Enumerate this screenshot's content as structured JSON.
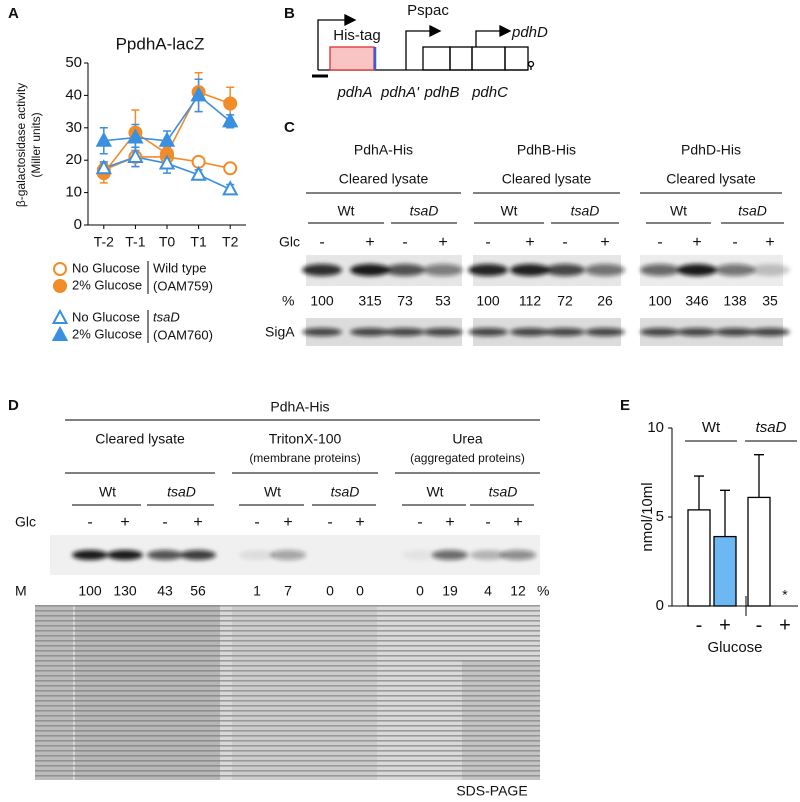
{
  "chart_data": [
    {
      "panel": "A",
      "type": "line",
      "title": "PpdhA-lacZ",
      "ylabel": "β-galactosidase activity",
      "ylabel_unit": "(Miller units)",
      "categories": [
        "T-2",
        "T-1",
        "T0",
        "T1",
        "T2"
      ],
      "ylim": [
        0,
        50
      ],
      "yticks": [
        0,
        10,
        20,
        30,
        40,
        50
      ],
      "grid": false,
      "series": [
        {
          "name": "No Glucose",
          "color": "#f28c28",
          "marker": "circle",
          "filled": false,
          "values": [
            17,
            21,
            21,
            19.5,
            17.5
          ],
          "errors": [
            2,
            3,
            3,
            1.5,
            1.5
          ]
        },
        {
          "name": "2% Glucose",
          "color": "#f28c28",
          "marker": "circle",
          "filled": true,
          "values": [
            16,
            28.5,
            22,
            41,
            37.5
          ],
          "errors": [
            3,
            7,
            4,
            6,
            5
          ]
        },
        {
          "name": "No Glucose",
          "color": "#3b8fe0",
          "marker": "triangle",
          "filled": false,
          "values": [
            17.5,
            21,
            19,
            15.5,
            11
          ],
          "errors": [
            2,
            3,
            3,
            1.5,
            1.5
          ]
        },
        {
          "name": "2% Glucose",
          "color": "#3b8fe0",
          "marker": "triangle",
          "filled": true,
          "values": [
            26,
            27,
            26,
            40,
            32
          ],
          "errors": [
            4,
            4,
            3,
            5,
            2
          ]
        }
      ],
      "legend_groups": [
        {
          "label": "Wild type",
          "strain": "(OAM759)"
        },
        {
          "label": "tsaD",
          "strain": "(OAM760)"
        }
      ]
    },
    {
      "panel": "E",
      "type": "bar",
      "groups": [
        "Wt",
        "tsaD"
      ],
      "categories": [
        "-",
        "+",
        "-",
        "+"
      ],
      "values": [
        5.4,
        3.9,
        6.1,
        0
      ],
      "errors": [
        1.9,
        2.6,
        2.4,
        null
      ],
      "colors": [
        "#ffffff",
        "#6bb8f2",
        "#ffffff",
        "#ffffff"
      ],
      "annotation": "*",
      "ylim": [
        0,
        10
      ],
      "yticks": [
        0,
        5,
        10
      ],
      "ylabel": "nmol/10ml",
      "xlabel": "Glucose"
    }
  ],
  "panel_b": {
    "label": "B",
    "his_tag": "His-tag",
    "pspac": "Pspac",
    "pdhD": "pdhD",
    "genes": [
      "pdhA",
      "pdhA'",
      "pdhB",
      "pdhC"
    ]
  },
  "panel_c": {
    "label": "C",
    "glc_label": "Glc",
    "percent_label": "%",
    "siga_label": "SigA",
    "blots": [
      {
        "header": "PdhA-His",
        "lysate": "Cleared lysate",
        "strains": [
          "Wt",
          "tsaD"
        ],
        "glc": [
          "-",
          "+",
          "-",
          "+"
        ],
        "percent": [
          100,
          315,
          73,
          53
        ]
      },
      {
        "header": "PdhB-His",
        "lysate": "Cleared lysate",
        "strains": [
          "Wt",
          "tsaD"
        ],
        "glc": [
          "-",
          "+",
          "-",
          "+"
        ],
        "percent": [
          100,
          112,
          72,
          26
        ]
      },
      {
        "header": "PdhD-His",
        "lysate": "Cleared lysate",
        "strains": [
          "Wt",
          "tsaD"
        ],
        "glc": [
          "-",
          "+",
          "-",
          "+"
        ],
        "percent": [
          100,
          346,
          138,
          35
        ]
      }
    ]
  },
  "panel_d": {
    "label": "D",
    "header": "PdhA-His",
    "glc_label": "Glc",
    "marker_label": "M",
    "percent_unit": "%",
    "gel_label": "SDS-PAGE",
    "fractions": [
      {
        "label": "Cleared lysate",
        "strains": [
          "Wt",
          "tsaD"
        ],
        "glc": [
          "-",
          "+",
          "-",
          "+"
        ],
        "percent": [
          100,
          130,
          43,
          56
        ]
      },
      {
        "label": "TritonX-100",
        "note": "(membrane proteins)",
        "strains": [
          "Wt",
          "tsaD"
        ],
        "glc": [
          "-",
          "+",
          "-",
          "+"
        ],
        "percent": [
          1,
          7,
          0,
          0
        ]
      },
      {
        "label": "Urea",
        "note": "(aggregated proteins)",
        "strains": [
          "Wt",
          "tsaD"
        ],
        "glc": [
          "-",
          "+",
          "-",
          "+"
        ],
        "percent": [
          0,
          19,
          4,
          12
        ]
      }
    ]
  }
}
